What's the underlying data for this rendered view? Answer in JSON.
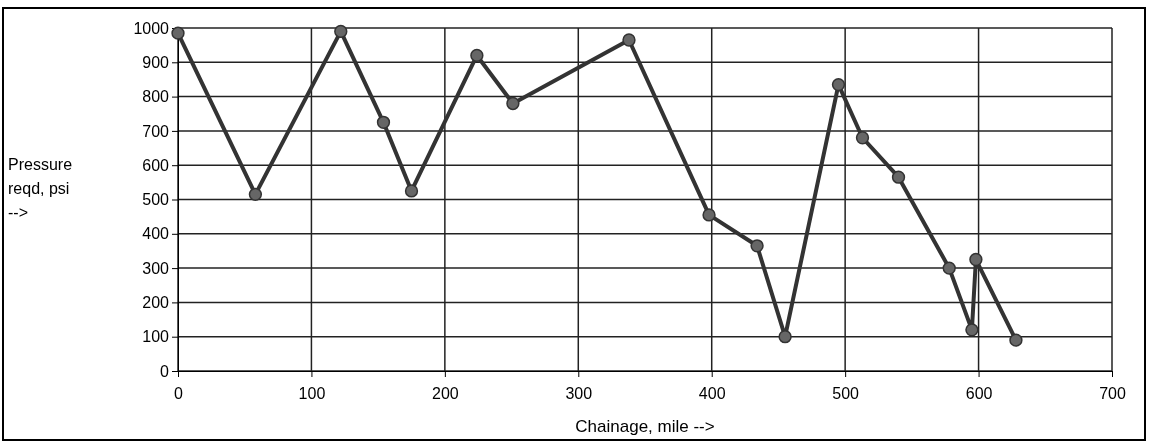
{
  "chart_data": {
    "type": "line",
    "xlabel": "Chainage, mile -->",
    "ylabel": "Pressure reqd, psi -->",
    "x": [
      0,
      58,
      122,
      154,
      175,
      224,
      251,
      338,
      398,
      434,
      455,
      495,
      513,
      540,
      578,
      595,
      598,
      628
    ],
    "series": [
      {
        "color": "#333333",
        "values": [
          985,
          515,
          990,
          725,
          525,
          920,
          780,
          965,
          455,
          365,
          100,
          835,
          680,
          565,
          300,
          120,
          325,
          90
        ]
      }
    ],
    "xlim": [
      0,
      700
    ],
    "xticks": [
      0,
      100,
      200,
      300,
      400,
      500,
      600,
      700
    ],
    "ylim": [
      0,
      1000
    ],
    "yticks": [
      0,
      100,
      200,
      300,
      400,
      500,
      600,
      700,
      800,
      900,
      1000
    ],
    "grid": true,
    "marker": "circle",
    "line_style": "solid"
  }
}
